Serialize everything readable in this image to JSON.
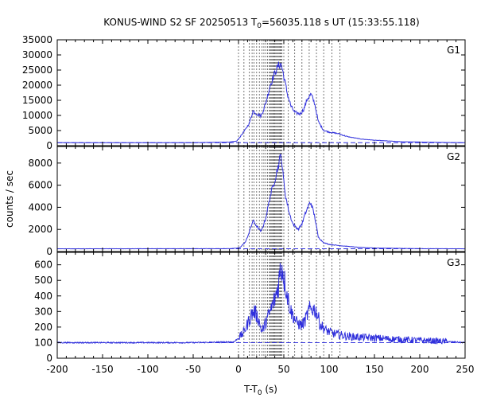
{
  "chart_data": {
    "type": "line",
    "title": "KONUS-WIND S2 SF 20250513 T",
    "title_sub": "0",
    "title_rest": "=56035.118 s UT (15:33:55.118)",
    "xlabel": "T-T",
    "xlabel_sub": "0",
    "xlabel_rest": " (s)",
    "ylabel": "counts / sec",
    "xlim": [
      -200,
      250
    ],
    "x_ticks": [
      -200,
      -150,
      -100,
      -50,
      0,
      50,
      100,
      150,
      200,
      250
    ],
    "x_tick_labels": [
      "-200",
      "-150",
      "-100",
      "-50",
      "0",
      "50",
      "100",
      "150",
      "200",
      "250"
    ],
    "line_color": "#2f2fdc",
    "vline_color": "#555555",
    "vlines_x": [
      0,
      6,
      12,
      15,
      17,
      20,
      23,
      26,
      28,
      30,
      32,
      34,
      35,
      36,
      37,
      38,
      39,
      40,
      41,
      42,
      43,
      44,
      45,
      46,
      47,
      48,
      50,
      55,
      62,
      70,
      78,
      86,
      94,
      103,
      112
    ],
    "panels": [
      {
        "name": "G1",
        "ylim": [
          0,
          35000
        ],
        "y_ticks": [
          0,
          5000,
          10000,
          15000,
          20000,
          25000,
          30000,
          35000
        ],
        "y_tick_labels": [
          "0",
          "5000",
          "10000",
          "15000",
          "20000",
          "25000",
          "30000",
          "35000"
        ],
        "baseline": 1000,
        "x": [
          -200,
          -50,
          -10,
          -2,
          2,
          8,
          12,
          16,
          20,
          25,
          30,
          35,
          40,
          44,
          47,
          50,
          54,
          58,
          62,
          68,
          72,
          76,
          80,
          84,
          88,
          94,
          100,
          110,
          120,
          135,
          150,
          180,
          220,
          250
        ],
        "y": [
          1000,
          1000,
          1200,
          1500,
          3000,
          5500,
          7500,
          11500,
          10500,
          9800,
          14000,
          20000,
          24000,
          26500,
          27000,
          23000,
          17000,
          13000,
          11000,
          10500,
          12000,
          15500,
          17000,
          14000,
          8000,
          5000,
          4500,
          4000,
          3000,
          2200,
          1800,
          1300,
          1100,
          1000
        ]
      },
      {
        "name": "G2",
        "ylim": [
          0,
          9500
        ],
        "y_ticks": [
          0,
          2000,
          4000,
          6000,
          8000
        ],
        "y_tick_labels": [
          "0",
          "2000",
          "4000",
          "6000",
          "8000"
        ],
        "baseline": 250,
        "x": [
          -200,
          -10,
          -2,
          2,
          8,
          12,
          16,
          20,
          25,
          30,
          35,
          40,
          44,
          46,
          47,
          49,
          52,
          56,
          60,
          66,
          70,
          74,
          78,
          80,
          84,
          88,
          94,
          100,
          110,
          130,
          150,
          200,
          250
        ],
        "y": [
          250,
          260,
          300,
          400,
          900,
          1800,
          2800,
          2300,
          1800,
          3000,
          5000,
          6500,
          7800,
          8500,
          8800,
          7000,
          5000,
          3500,
          2500,
          2000,
          2500,
          3500,
          4300,
          4400,
          3200,
          1300,
          800,
          650,
          550,
          400,
          320,
          260,
          250
        ]
      },
      {
        "name": "G3",
        "ylim": [
          0,
          680
        ],
        "y_ticks": [
          0,
          100,
          200,
          300,
          400,
          500,
          600
        ],
        "y_tick_labels": [
          "0",
          "100",
          "200",
          "300",
          "400",
          "500",
          "600"
        ],
        "baseline": 100,
        "x": [
          -200,
          -50,
          -5,
          0,
          5,
          10,
          14,
          18,
          22,
          26,
          30,
          35,
          40,
          44,
          46,
          48,
          50,
          54,
          58,
          64,
          70,
          74,
          78,
          82,
          86,
          90,
          96,
          104,
          120,
          150,
          180,
          220,
          250
        ],
        "y": [
          100,
          100,
          105,
          130,
          160,
          220,
          280,
          300,
          250,
          170,
          230,
          300,
          380,
          470,
          560,
          590,
          520,
          400,
          300,
          230,
          210,
          250,
          310,
          320,
          300,
          220,
          180,
          160,
          140,
          130,
          120,
          110,
          100
        ]
      }
    ]
  }
}
